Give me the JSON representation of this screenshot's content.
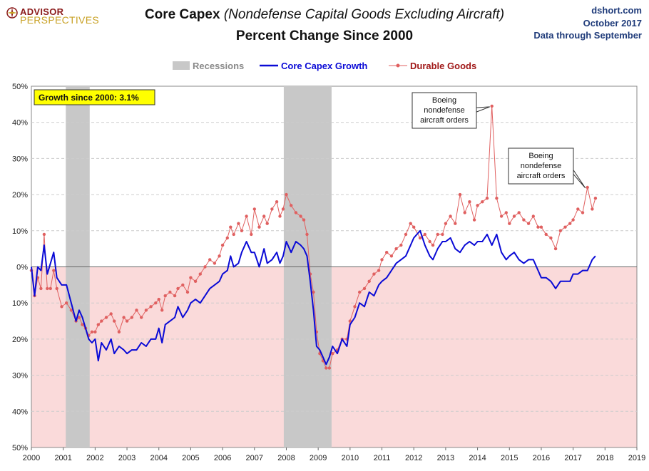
{
  "header": {
    "logo_line1": "ADVISOR",
    "logo_line2": "PERSPECTIVES",
    "title_main": "Core Capex",
    "title_paren": "(Nondefense  Capital Goods Excluding Aircraft)",
    "subtitle": "Percent Change Since 2000",
    "site": "dshort.com",
    "date": "October 2017",
    "data_through": "Data through September"
  },
  "colors": {
    "core": "#0a0ad6",
    "durable": "#e06060",
    "recession": "#c8c8c8",
    "negative_zone": "#fadada",
    "title_blue": "#1f3b7a",
    "logo_red": "#8b1a1a",
    "logo_gold": "#c9a227"
  },
  "chart_data": {
    "type": "line",
    "title": "Core Capex (Nondefense  Capital Goods Excluding Aircraft) Percent Change Since 2000",
    "ylim": [
      -50,
      50
    ],
    "xlim": [
      2000,
      2019
    ],
    "y_ticks": [
      50,
      40,
      30,
      20,
      10,
      0,
      -10,
      -20,
      -30,
      -40,
      -50
    ],
    "y_tick_labels": [
      "50%",
      "40%",
      "30%",
      "20%",
      "10%",
      "0%",
      "10%",
      "20%",
      "30%",
      "40%",
      "50%"
    ],
    "x_ticks": [
      2000,
      2001,
      2002,
      2003,
      2004,
      2005,
      2006,
      2007,
      2008,
      2009,
      2010,
      2011,
      2012,
      2013,
      2014,
      2015,
      2016,
      2017,
      2018,
      2019
    ],
    "x_tick_labels": [
      "2000",
      "2001",
      "2002",
      "2003",
      "2004",
      "2005",
      "2006",
      "2007",
      "2008",
      "2009",
      "2010",
      "2011",
      "2012",
      "2013",
      "2014",
      "2015",
      "2016",
      "2017",
      "2018",
      "2019"
    ],
    "legend": {
      "placement": "top-center",
      "items": [
        "Recessions",
        "Core Capex Growth",
        "Durable Goods"
      ]
    },
    "recessions": [
      {
        "start": 2001.08,
        "end": 2001.83
      },
      {
        "start": 2007.92,
        "end": 2009.42
      }
    ],
    "series": [
      {
        "name": "Core Capex Growth",
        "style": "line",
        "points": [
          [
            2000.0,
            0
          ],
          [
            2000.1,
            -8
          ],
          [
            2000.2,
            0
          ],
          [
            2000.3,
            -1
          ],
          [
            2000.4,
            6
          ],
          [
            2000.5,
            -2
          ],
          [
            2000.6,
            1
          ],
          [
            2000.7,
            4
          ],
          [
            2000.8,
            -3
          ],
          [
            2000.95,
            -5
          ],
          [
            2001.1,
            -5
          ],
          [
            2001.25,
            -10
          ],
          [
            2001.4,
            -15
          ],
          [
            2001.5,
            -12
          ],
          [
            2001.6,
            -14
          ],
          [
            2001.7,
            -17
          ],
          [
            2001.8,
            -20
          ],
          [
            2001.9,
            -21
          ],
          [
            2002.0,
            -20
          ],
          [
            2002.1,
            -26
          ],
          [
            2002.2,
            -21
          ],
          [
            2002.35,
            -23
          ],
          [
            2002.5,
            -20
          ],
          [
            2002.6,
            -24
          ],
          [
            2002.75,
            -22
          ],
          [
            2002.9,
            -23
          ],
          [
            2003.0,
            -24
          ],
          [
            2003.15,
            -23
          ],
          [
            2003.3,
            -23
          ],
          [
            2003.45,
            -21
          ],
          [
            2003.6,
            -22
          ],
          [
            2003.75,
            -20
          ],
          [
            2003.9,
            -20
          ],
          [
            2004.0,
            -17
          ],
          [
            2004.1,
            -21
          ],
          [
            2004.2,
            -16
          ],
          [
            2004.35,
            -15
          ],
          [
            2004.5,
            -14
          ],
          [
            2004.6,
            -11
          ],
          [
            2004.75,
            -14
          ],
          [
            2004.9,
            -12
          ],
          [
            2005.0,
            -10
          ],
          [
            2005.15,
            -9
          ],
          [
            2005.3,
            -10
          ],
          [
            2005.45,
            -8
          ],
          [
            2005.6,
            -6
          ],
          [
            2005.75,
            -5
          ],
          [
            2005.9,
            -4
          ],
          [
            2006.0,
            -2
          ],
          [
            2006.15,
            -1
          ],
          [
            2006.25,
            3
          ],
          [
            2006.35,
            0
          ],
          [
            2006.5,
            1
          ],
          [
            2006.6,
            4
          ],
          [
            2006.75,
            7
          ],
          [
            2006.9,
            4
          ],
          [
            2007.0,
            4
          ],
          [
            2007.15,
            0
          ],
          [
            2007.3,
            5
          ],
          [
            2007.4,
            1
          ],
          [
            2007.55,
            2
          ],
          [
            2007.7,
            4
          ],
          [
            2007.8,
            1
          ],
          [
            2007.9,
            3
          ],
          [
            2008.0,
            7
          ],
          [
            2008.15,
            4
          ],
          [
            2008.3,
            7
          ],
          [
            2008.45,
            6
          ],
          [
            2008.55,
            5
          ],
          [
            2008.65,
            3
          ],
          [
            2008.75,
            -4
          ],
          [
            2008.85,
            -12
          ],
          [
            2008.95,
            -22
          ],
          [
            2009.05,
            -23
          ],
          [
            2009.15,
            -25
          ],
          [
            2009.25,
            -27
          ],
          [
            2009.35,
            -25
          ],
          [
            2009.45,
            -22
          ],
          [
            2009.6,
            -24
          ],
          [
            2009.75,
            -20
          ],
          [
            2009.9,
            -22
          ],
          [
            2010.0,
            -16
          ],
          [
            2010.15,
            -14
          ],
          [
            2010.3,
            -10
          ],
          [
            2010.45,
            -11
          ],
          [
            2010.6,
            -7
          ],
          [
            2010.75,
            -8
          ],
          [
            2010.9,
            -5
          ],
          [
            2011.0,
            -4
          ],
          [
            2011.15,
            -3
          ],
          [
            2011.3,
            -1
          ],
          [
            2011.45,
            1
          ],
          [
            2011.6,
            2
          ],
          [
            2011.75,
            3
          ],
          [
            2011.9,
            6
          ],
          [
            2012.0,
            8
          ],
          [
            2012.2,
            10
          ],
          [
            2012.35,
            6
          ],
          [
            2012.5,
            3
          ],
          [
            2012.6,
            2
          ],
          [
            2012.75,
            5
          ],
          [
            2012.9,
            7
          ],
          [
            2013.0,
            7
          ],
          [
            2013.15,
            8
          ],
          [
            2013.3,
            5
          ],
          [
            2013.45,
            4
          ],
          [
            2013.6,
            6
          ],
          [
            2013.75,
            7
          ],
          [
            2013.9,
            6
          ],
          [
            2014.0,
            7
          ],
          [
            2014.15,
            7
          ],
          [
            2014.3,
            9
          ],
          [
            2014.45,
            6
          ],
          [
            2014.6,
            9
          ],
          [
            2014.75,
            4
          ],
          [
            2014.9,
            2
          ],
          [
            2015.0,
            3
          ],
          [
            2015.15,
            4
          ],
          [
            2015.3,
            2
          ],
          [
            2015.45,
            1
          ],
          [
            2015.6,
            2
          ],
          [
            2015.75,
            2
          ],
          [
            2015.9,
            -1
          ],
          [
            2016.0,
            -3
          ],
          [
            2016.15,
            -3
          ],
          [
            2016.3,
            -4
          ],
          [
            2016.45,
            -6
          ],
          [
            2016.6,
            -4
          ],
          [
            2016.75,
            -4
          ],
          [
            2016.9,
            -4
          ],
          [
            2017.0,
            -2
          ],
          [
            2017.15,
            -2
          ],
          [
            2017.3,
            -1
          ],
          [
            2017.45,
            -1
          ],
          [
            2017.6,
            2
          ],
          [
            2017.7,
            3
          ]
        ]
      },
      {
        "name": "Durable Goods",
        "style": "line-markers",
        "points": [
          [
            2000.0,
            -1
          ],
          [
            2000.1,
            -8
          ],
          [
            2000.2,
            -3
          ],
          [
            2000.3,
            -6
          ],
          [
            2000.4,
            9
          ],
          [
            2000.5,
            -6
          ],
          [
            2000.6,
            -6
          ],
          [
            2000.7,
            -1
          ],
          [
            2000.8,
            -6
          ],
          [
            2000.95,
            -11
          ],
          [
            2001.1,
            -10
          ],
          [
            2001.25,
            -12
          ],
          [
            2001.4,
            -15
          ],
          [
            2001.5,
            -14
          ],
          [
            2001.6,
            -16
          ],
          [
            2001.7,
            -17
          ],
          [
            2001.8,
            -19
          ],
          [
            2001.9,
            -18
          ],
          [
            2002.0,
            -18
          ],
          [
            2002.1,
            -16
          ],
          [
            2002.2,
            -15
          ],
          [
            2002.35,
            -14
          ],
          [
            2002.5,
            -13
          ],
          [
            2002.6,
            -15
          ],
          [
            2002.75,
            -18
          ],
          [
            2002.9,
            -14
          ],
          [
            2003.0,
            -15
          ],
          [
            2003.15,
            -14
          ],
          [
            2003.3,
            -12
          ],
          [
            2003.45,
            -14
          ],
          [
            2003.6,
            -12
          ],
          [
            2003.75,
            -11
          ],
          [
            2003.9,
            -10
          ],
          [
            2004.0,
            -9
          ],
          [
            2004.1,
            -12
          ],
          [
            2004.2,
            -8
          ],
          [
            2004.35,
            -7
          ],
          [
            2004.5,
            -8
          ],
          [
            2004.6,
            -6
          ],
          [
            2004.75,
            -5
          ],
          [
            2004.9,
            -7
          ],
          [
            2005.0,
            -3
          ],
          [
            2005.15,
            -4
          ],
          [
            2005.3,
            -2
          ],
          [
            2005.45,
            0
          ],
          [
            2005.6,
            2
          ],
          [
            2005.75,
            1
          ],
          [
            2005.9,
            3
          ],
          [
            2006.0,
            6
          ],
          [
            2006.15,
            8
          ],
          [
            2006.25,
            11
          ],
          [
            2006.35,
            9
          ],
          [
            2006.5,
            12
          ],
          [
            2006.6,
            10
          ],
          [
            2006.75,
            14
          ],
          [
            2006.9,
            9
          ],
          [
            2007.0,
            16
          ],
          [
            2007.15,
            11
          ],
          [
            2007.3,
            14
          ],
          [
            2007.4,
            12
          ],
          [
            2007.55,
            16
          ],
          [
            2007.7,
            18
          ],
          [
            2007.8,
            14
          ],
          [
            2007.9,
            16
          ],
          [
            2008.0,
            20
          ],
          [
            2008.15,
            17
          ],
          [
            2008.3,
            15
          ],
          [
            2008.45,
            14
          ],
          [
            2008.55,
            13
          ],
          [
            2008.65,
            9
          ],
          [
            2008.75,
            -2
          ],
          [
            2008.85,
            -7
          ],
          [
            2008.95,
            -18
          ],
          [
            2009.05,
            -24
          ],
          [
            2009.15,
            -26
          ],
          [
            2009.25,
            -28
          ],
          [
            2009.35,
            -28
          ],
          [
            2009.45,
            -24
          ],
          [
            2009.6,
            -23
          ],
          [
            2009.75,
            -20
          ],
          [
            2009.9,
            -20
          ],
          [
            2010.0,
            -15
          ],
          [
            2010.15,
            -11
          ],
          [
            2010.3,
            -7
          ],
          [
            2010.45,
            -6
          ],
          [
            2010.6,
            -4
          ],
          [
            2010.75,
            -2
          ],
          [
            2010.9,
            -1
          ],
          [
            2011.0,
            2
          ],
          [
            2011.15,
            4
          ],
          [
            2011.3,
            3
          ],
          [
            2011.45,
            5
          ],
          [
            2011.6,
            6
          ],
          [
            2011.75,
            9
          ],
          [
            2011.9,
            12
          ],
          [
            2012.0,
            11
          ],
          [
            2012.2,
            8
          ],
          [
            2012.35,
            9
          ],
          [
            2012.5,
            7
          ],
          [
            2012.6,
            6
          ],
          [
            2012.75,
            9
          ],
          [
            2012.9,
            9
          ],
          [
            2013.0,
            12
          ],
          [
            2013.15,
            14
          ],
          [
            2013.3,
            12
          ],
          [
            2013.45,
            20
          ],
          [
            2013.6,
            15
          ],
          [
            2013.75,
            18
          ],
          [
            2013.9,
            13
          ],
          [
            2014.0,
            17
          ],
          [
            2014.15,
            18
          ],
          [
            2014.3,
            19
          ],
          [
            2014.45,
            44.5
          ],
          [
            2014.6,
            19
          ],
          [
            2014.75,
            14
          ],
          [
            2014.9,
            15
          ],
          [
            2015.0,
            12
          ],
          [
            2015.15,
            14
          ],
          [
            2015.3,
            15
          ],
          [
            2015.45,
            13
          ],
          [
            2015.6,
            12
          ],
          [
            2015.75,
            14
          ],
          [
            2015.9,
            11
          ],
          [
            2016.0,
            11
          ],
          [
            2016.15,
            9
          ],
          [
            2016.3,
            8
          ],
          [
            2016.45,
            5
          ],
          [
            2016.6,
            10
          ],
          [
            2016.75,
            11
          ],
          [
            2016.9,
            12
          ],
          [
            2017.0,
            13
          ],
          [
            2017.15,
            16
          ],
          [
            2017.3,
            15
          ],
          [
            2017.45,
            22
          ],
          [
            2017.6,
            16
          ],
          [
            2017.7,
            19
          ]
        ]
      }
    ],
    "annotations": [
      {
        "text": [
          "Boeing",
          "nondefense",
          "aircraft orders"
        ],
        "x": 2014.45,
        "y": 44.5
      },
      {
        "text": [
          "Boeing",
          "nondefense",
          "aircraft orders"
        ],
        "x": 2017.45,
        "y": 22
      }
    ],
    "badge": "Growth since 2000:  3.1%"
  }
}
